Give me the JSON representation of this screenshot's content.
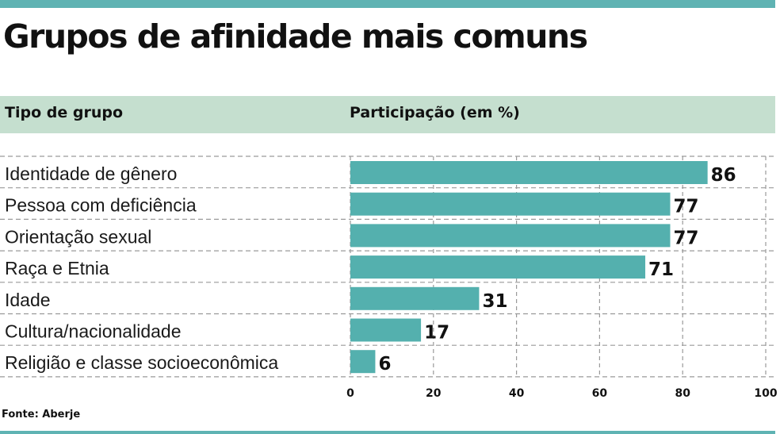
{
  "title": "Grupos de afinidade mais comuns",
  "header": {
    "left": "Tipo de grupo",
    "right": "Participação (em %)"
  },
  "source": "Fonte: Aberje",
  "colors": {
    "accent": "#5fb3b3",
    "bar": "#54b0ae",
    "header_band": "#c5dfcf"
  },
  "chart_data": {
    "type": "bar",
    "orientation": "horizontal",
    "categories": [
      "Identidade de gênero",
      "Pessoa com deficiência",
      "Orientação sexual",
      "Raça e Etnia",
      "Idade",
      "Cultura/nacionalidade",
      "Religião e classe socioeconômica"
    ],
    "values": [
      86,
      77,
      77,
      71,
      31,
      17,
      6
    ],
    "xlim": [
      0,
      100
    ],
    "xticks": [
      0,
      20,
      40,
      60,
      80,
      100
    ],
    "grid": true
  }
}
